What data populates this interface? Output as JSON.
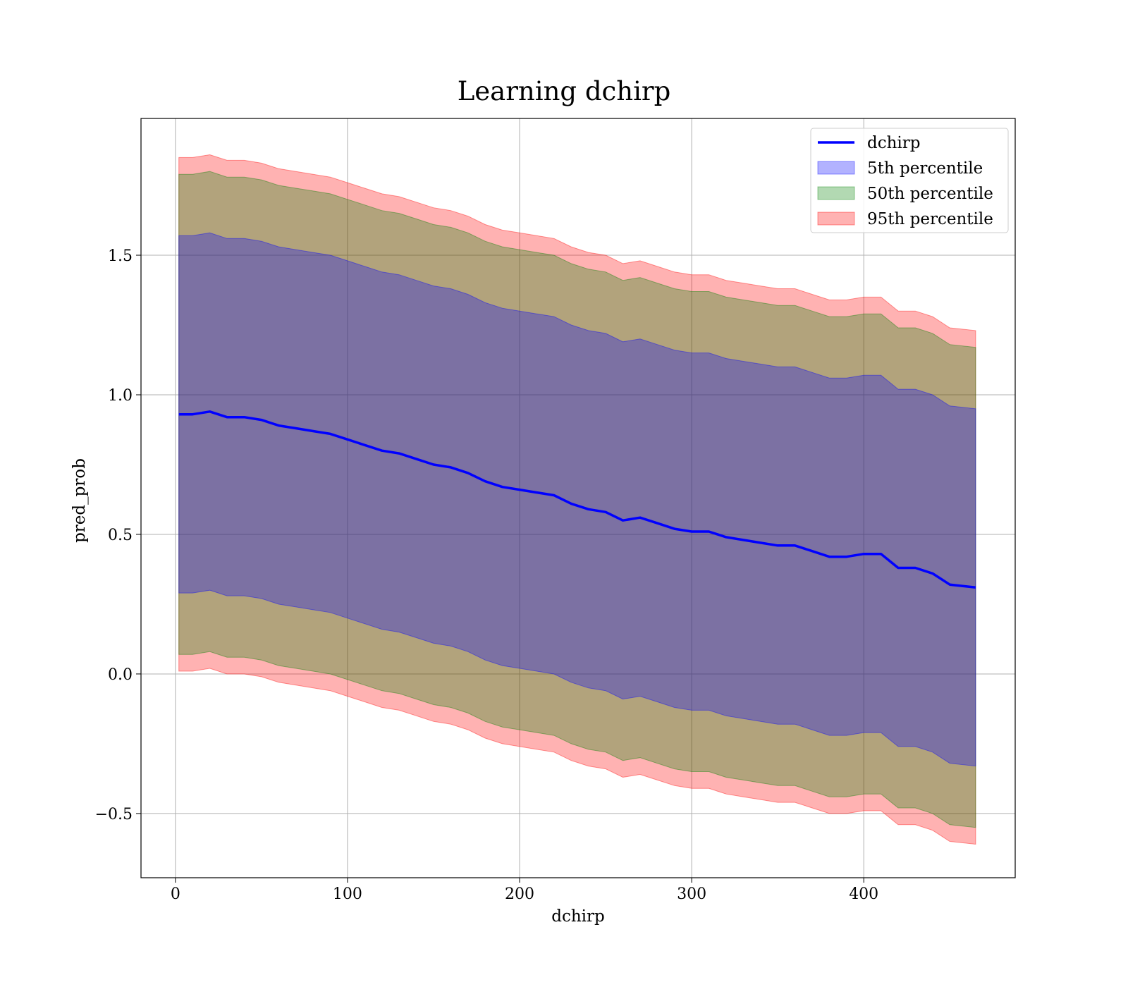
{
  "chart_data": {
    "type": "area",
    "title": "Learning dchirp",
    "xlabel": "dchirp",
    "ylabel": "pred_prob",
    "xlim": [
      -20,
      488
    ],
    "ylim": [
      -0.73,
      1.99
    ],
    "x_ticks": [
      0,
      100,
      200,
      300,
      400
    ],
    "y_ticks": [
      -0.5,
      0.0,
      0.5,
      1.0,
      1.5
    ],
    "x_tick_labels": [
      "0",
      "100",
      "200",
      "300",
      "400"
    ],
    "y_tick_labels": [
      "−0.5",
      "0.0",
      "0.5",
      "1.0",
      "1.5"
    ],
    "grid": true,
    "legend_position": "top-right",
    "x": [
      2,
      10,
      20,
      30,
      40,
      50,
      60,
      70,
      80,
      90,
      100,
      110,
      120,
      130,
      140,
      150,
      160,
      170,
      180,
      190,
      200,
      210,
      220,
      230,
      240,
      250,
      260,
      270,
      280,
      290,
      300,
      310,
      320,
      330,
      340,
      350,
      360,
      370,
      380,
      390,
      400,
      410,
      420,
      430,
      440,
      450,
      465
    ],
    "series": [
      {
        "name": "dchirp",
        "kind": "line",
        "color": "#0000ff",
        "values": [
          0.93,
          0.93,
          0.94,
          0.92,
          0.92,
          0.91,
          0.89,
          0.88,
          0.87,
          0.86,
          0.84,
          0.82,
          0.8,
          0.79,
          0.77,
          0.75,
          0.74,
          0.72,
          0.69,
          0.67,
          0.66,
          0.65,
          0.64,
          0.61,
          0.59,
          0.58,
          0.55,
          0.56,
          0.54,
          0.52,
          0.51,
          0.51,
          0.49,
          0.48,
          0.47,
          0.46,
          0.46,
          0.44,
          0.42,
          0.42,
          0.43,
          0.43,
          0.38,
          0.38,
          0.36,
          0.32,
          0.31
        ]
      },
      {
        "name": "5th percentile",
        "kind": "band",
        "color": "#0000ff",
        "lower": [
          0.29,
          0.29,
          0.3,
          0.28,
          0.28,
          0.27,
          0.25,
          0.24,
          0.23,
          0.22,
          0.2,
          0.18,
          0.16,
          0.15,
          0.13,
          0.11,
          0.1,
          0.08,
          0.05,
          0.03,
          0.02,
          0.01,
          0.0,
          -0.03,
          -0.05,
          -0.06,
          -0.09,
          -0.08,
          -0.1,
          -0.12,
          -0.13,
          -0.13,
          -0.15,
          -0.16,
          -0.17,
          -0.18,
          -0.18,
          -0.2,
          -0.22,
          -0.22,
          -0.21,
          -0.21,
          -0.26,
          -0.26,
          -0.28,
          -0.32,
          -0.33
        ],
        "upper": [
          1.57,
          1.57,
          1.58,
          1.56,
          1.56,
          1.55,
          1.53,
          1.52,
          1.51,
          1.5,
          1.48,
          1.46,
          1.44,
          1.43,
          1.41,
          1.39,
          1.38,
          1.36,
          1.33,
          1.31,
          1.3,
          1.29,
          1.28,
          1.25,
          1.23,
          1.22,
          1.19,
          1.2,
          1.18,
          1.16,
          1.15,
          1.15,
          1.13,
          1.12,
          1.11,
          1.1,
          1.1,
          1.08,
          1.06,
          1.06,
          1.07,
          1.07,
          1.02,
          1.02,
          1.0,
          0.96,
          0.95
        ]
      },
      {
        "name": "50th percentile",
        "kind": "band",
        "color": "#008000",
        "lower": [
          0.07,
          0.07,
          0.08,
          0.06,
          0.06,
          0.05,
          0.03,
          0.02,
          0.01,
          0.0,
          -0.02,
          -0.04,
          -0.06,
          -0.07,
          -0.09,
          -0.11,
          -0.12,
          -0.14,
          -0.17,
          -0.19,
          -0.2,
          -0.21,
          -0.22,
          -0.25,
          -0.27,
          -0.28,
          -0.31,
          -0.3,
          -0.32,
          -0.34,
          -0.35,
          -0.35,
          -0.37,
          -0.38,
          -0.39,
          -0.4,
          -0.4,
          -0.42,
          -0.44,
          -0.44,
          -0.43,
          -0.43,
          -0.48,
          -0.48,
          -0.5,
          -0.54,
          -0.55
        ],
        "upper": [
          1.79,
          1.79,
          1.8,
          1.78,
          1.78,
          1.77,
          1.75,
          1.74,
          1.73,
          1.72,
          1.7,
          1.68,
          1.66,
          1.65,
          1.63,
          1.61,
          1.6,
          1.58,
          1.55,
          1.53,
          1.52,
          1.51,
          1.5,
          1.47,
          1.45,
          1.44,
          1.41,
          1.42,
          1.4,
          1.38,
          1.37,
          1.37,
          1.35,
          1.34,
          1.33,
          1.32,
          1.32,
          1.3,
          1.28,
          1.28,
          1.29,
          1.29,
          1.24,
          1.24,
          1.22,
          1.18,
          1.17
        ]
      },
      {
        "name": "95th percentile",
        "kind": "band",
        "color": "#ff0000",
        "lower": [
          0.01,
          0.01,
          0.02,
          0.0,
          0.0,
          -0.01,
          -0.03,
          -0.04,
          -0.05,
          -0.06,
          -0.08,
          -0.1,
          -0.12,
          -0.13,
          -0.15,
          -0.17,
          -0.18,
          -0.2,
          -0.23,
          -0.25,
          -0.26,
          -0.27,
          -0.28,
          -0.31,
          -0.33,
          -0.34,
          -0.37,
          -0.36,
          -0.38,
          -0.4,
          -0.41,
          -0.41,
          -0.43,
          -0.44,
          -0.45,
          -0.46,
          -0.46,
          -0.48,
          -0.5,
          -0.5,
          -0.49,
          -0.49,
          -0.54,
          -0.54,
          -0.56,
          -0.6,
          -0.61
        ],
        "upper": [
          1.85,
          1.85,
          1.86,
          1.84,
          1.84,
          1.83,
          1.81,
          1.8,
          1.79,
          1.78,
          1.76,
          1.74,
          1.72,
          1.71,
          1.69,
          1.67,
          1.66,
          1.64,
          1.61,
          1.59,
          1.58,
          1.57,
          1.56,
          1.53,
          1.51,
          1.5,
          1.47,
          1.48,
          1.46,
          1.44,
          1.43,
          1.43,
          1.41,
          1.4,
          1.39,
          1.38,
          1.38,
          1.36,
          1.34,
          1.34,
          1.35,
          1.35,
          1.3,
          1.3,
          1.28,
          1.24,
          1.23
        ]
      }
    ]
  }
}
